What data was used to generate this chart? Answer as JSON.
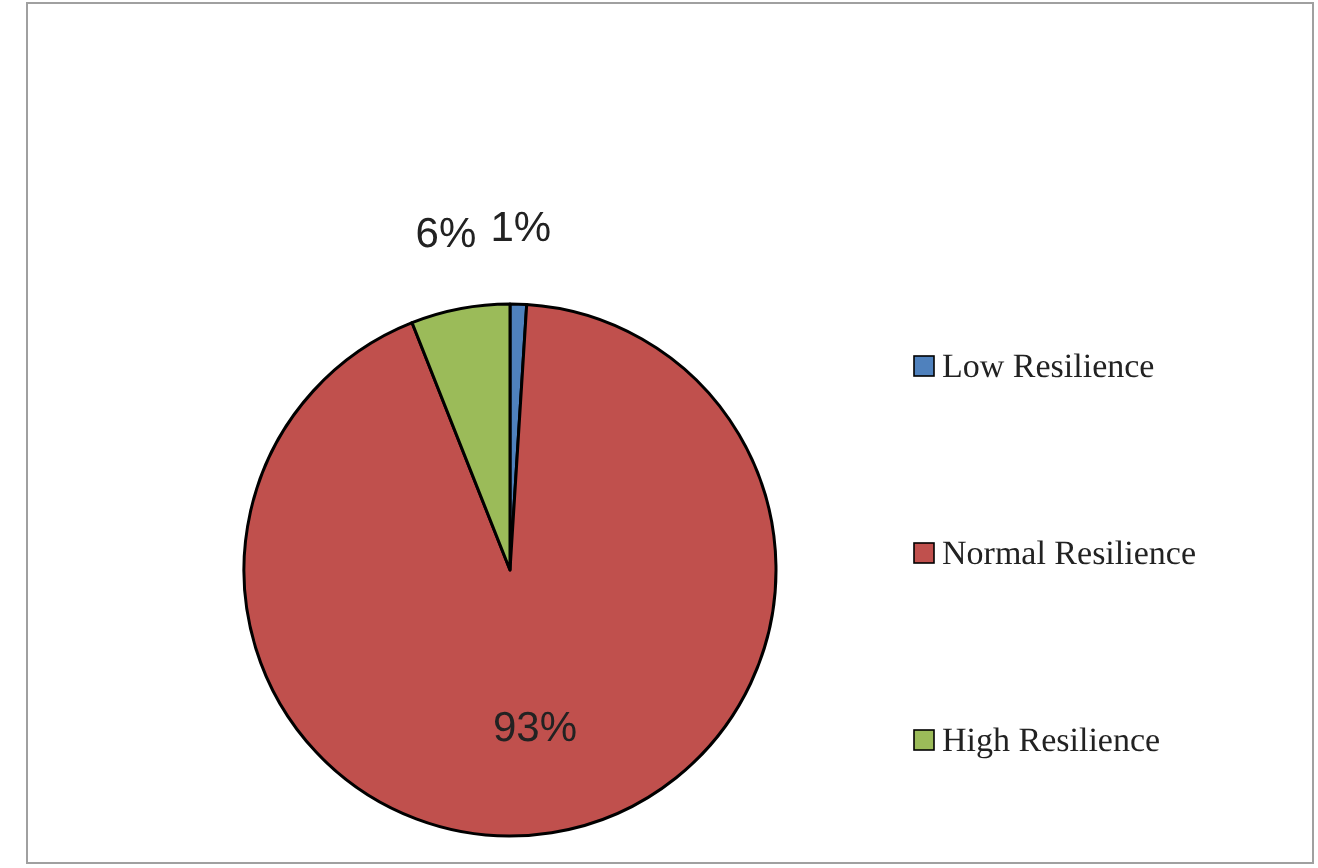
{
  "chart_data": {
    "type": "pie",
    "categories": [
      "Low Resilience",
      "Normal Resilience",
      "High Resilience"
    ],
    "values": [
      1,
      93,
      6
    ],
    "colors": [
      "#4f81bd",
      "#c0504d",
      "#9bbb59"
    ],
    "value_labels": [
      "1%",
      "93%",
      "6%"
    ],
    "legend": "right"
  }
}
